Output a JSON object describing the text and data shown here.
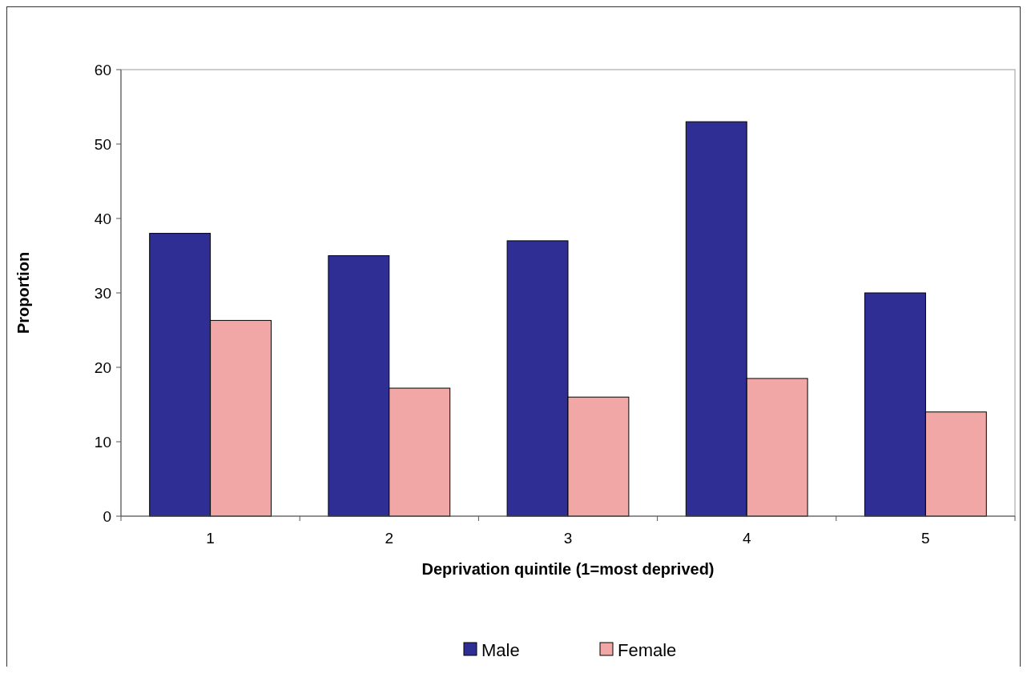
{
  "chart_data": {
    "type": "bar",
    "xlabel": "Deprivation quintile (1=most deprived)",
    "ylabel": "Proportion",
    "categories": [
      "1",
      "2",
      "3",
      "4",
      "5"
    ],
    "series": [
      {
        "name": "Male",
        "color": "#2e2e94",
        "values": [
          38,
          35,
          37,
          53,
          30
        ]
      },
      {
        "name": "Female",
        "color": "#f2a7a7",
        "values": [
          26.3,
          17.2,
          16,
          18.5,
          14
        ]
      }
    ],
    "ylim": [
      0,
      60
    ],
    "yticks": [
      0,
      10,
      20,
      30,
      40,
      50,
      60
    ],
    "grid": false,
    "legend": "bottom"
  }
}
